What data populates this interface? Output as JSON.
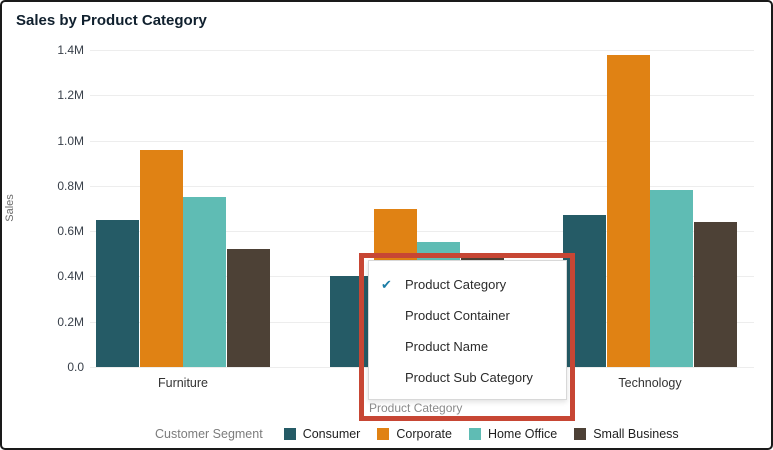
{
  "title": "Sales by Product Category",
  "y_axis": {
    "title": "Sales",
    "ticks": [
      "1.4M",
      "1.2M",
      "1.0M",
      "0.8M",
      "0.6M",
      "0.4M",
      "0.2M",
      "0.0"
    ]
  },
  "x_axis": {
    "control_label": "Product Category"
  },
  "legend": {
    "label": "Customer Segment",
    "items": [
      {
        "name": "Consumer",
        "color": "#255b66"
      },
      {
        "name": "Corporate",
        "color": "#e08214"
      },
      {
        "name": "Home Office",
        "color": "#5fbcb4"
      },
      {
        "name": "Small Business",
        "color": "#4d4136"
      }
    ]
  },
  "menu": {
    "check_color": "#1c7da6",
    "check_glyph": "✔",
    "items": [
      {
        "label": "Product Category",
        "checked": true
      },
      {
        "label": "Product Container",
        "checked": false
      },
      {
        "label": "Product Name",
        "checked": false
      },
      {
        "label": "Product Sub Category",
        "checked": false
      }
    ]
  },
  "annotation": {
    "highlight_color": "#c74634"
  },
  "chart_data": {
    "type": "bar",
    "title": "Sales by Product Category",
    "xlabel": "Product Category",
    "ylabel": "Sales",
    "categories": [
      "Furniture",
      "",
      "Technology"
    ],
    "hidden_category_index": 1,
    "series": [
      {
        "name": "Consumer",
        "color": "#255b66",
        "values": [
          0.65,
          0.4,
          0.67
        ]
      },
      {
        "name": "Corporate",
        "color": "#e08214",
        "values": [
          0.96,
          0.7,
          1.38
        ]
      },
      {
        "name": "Home Office",
        "color": "#5fbcb4",
        "values": [
          0.75,
          0.55,
          0.78
        ]
      },
      {
        "name": "Small Business",
        "color": "#4d4136",
        "values": [
          0.52,
          0.48,
          0.64
        ]
      }
    ],
    "unit": "M",
    "ylim": [
      0,
      1.4
    ],
    "ytick_step": 0.2,
    "grid": true,
    "legend_position": "bottom"
  }
}
